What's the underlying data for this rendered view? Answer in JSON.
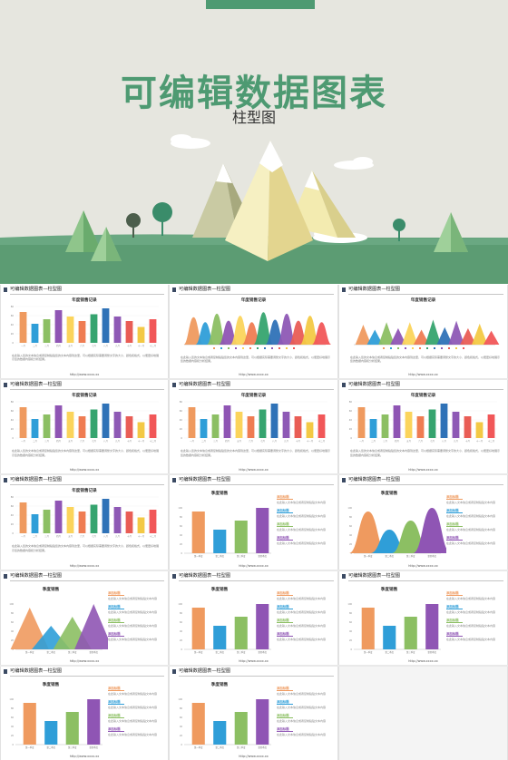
{
  "hero": {
    "title": "可编辑数据图表",
    "subtitle": "柱型图"
  },
  "colors": {
    "bars": [
      "#ef9a5f",
      "#2f9ed8",
      "#8cbf63",
      "#8f55b4",
      "#fbd45b",
      "#ef7c52",
      "#36a46f",
      "#2f72b7",
      "#8e59b5",
      "#e95d55",
      "#f3c945",
      "#f15758"
    ],
    "hero_green": "#4e9a72",
    "grass": "#5c9c73"
  },
  "slide_header": "可编辑数据图表—柱型图",
  "chart_title_annual": "年度销售记录",
  "chart_title_quarter": "季度销售",
  "footer_url": "http://www.xxxx.xx",
  "paragraph": "在此输入您的文本信息或者复制粘贴您的文本内容到这里，可以根据实际需要调整文字的大小、颜色和格式，以便更好地展示您的数据内容和分析结果。",
  "legend_tag": "添加标题",
  "legend_desc": "在此输入文本信息或者复制粘贴文本内容",
  "chart_data": [
    {
      "type": "bar",
      "title": "年度销售记录",
      "categories": [
        "一月",
        "二月",
        "三月",
        "四月",
        "五月",
        "六月",
        "七月",
        "八月",
        "九月",
        "十月",
        "十一月",
        "十二月"
      ],
      "values": [
        68,
        42,
        52,
        72,
        58,
        48,
        63,
        76,
        58,
        48,
        35,
        52
      ]
    },
    {
      "type": "area",
      "title": "年度销售记录",
      "categories": [
        "一月",
        "二月",
        "三月",
        "四月",
        "五月",
        "六月",
        "七月",
        "八月",
        "九月",
        "十月",
        "十一月",
        "十二月"
      ],
      "values": [
        55,
        45,
        62,
        48,
        58,
        45,
        65,
        50,
        62,
        48,
        58,
        45
      ]
    },
    {
      "type": "area",
      "title": "年度销售记录",
      "categories": [
        "一月",
        "二月",
        "三月",
        "四月",
        "五月",
        "六月",
        "七月",
        "八月",
        "九月",
        "十月",
        "十一月",
        "十二月"
      ],
      "values": [
        40,
        30,
        45,
        33,
        45,
        30,
        50,
        35,
        48,
        33,
        42,
        28
      ]
    },
    {
      "type": "bar",
      "title": "季度销售",
      "categories": [
        "第一季度",
        "第二季度",
        "第三季度",
        "第四季度"
      ],
      "values": [
        92,
        52,
        72,
        100
      ]
    }
  ],
  "slides": [
    {
      "chart": "bars12"
    },
    {
      "chart": "waves"
    },
    {
      "chart": "triangles"
    },
    {
      "chart": "bars12"
    },
    {
      "chart": "bars12"
    },
    {
      "chart": "bars12"
    },
    {
      "chart": "bars12"
    },
    {
      "chart": "quarter_bars"
    },
    {
      "chart": "quarter_waves"
    },
    {
      "chart": "quarter_triangles"
    },
    {
      "chart": "quarter_bars"
    },
    {
      "chart": "quarter_bars"
    },
    {
      "chart": "quarter_bars"
    },
    {
      "chart": "quarter_bars"
    },
    {
      "chart": "empty"
    }
  ]
}
